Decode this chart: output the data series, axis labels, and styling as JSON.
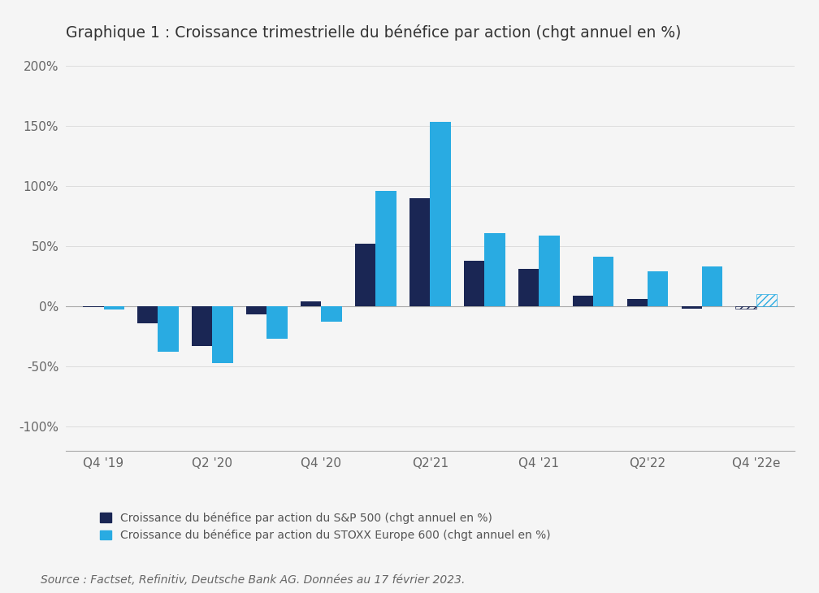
{
  "title": "Graphique 1 : Croissance trimestrielle du bénéfice par action (chgt annuel en %)",
  "sp500": [
    -1,
    -14,
    -33,
    -7,
    4,
    52,
    90,
    38,
    31,
    9,
    6,
    -2,
    -2
  ],
  "stoxx": [
    -3,
    -38,
    -47,
    -27,
    -13,
    96,
    153,
    61,
    59,
    41,
    29,
    33,
    10
  ],
  "sp500_estimated": [
    false,
    false,
    false,
    false,
    false,
    false,
    false,
    false,
    false,
    false,
    false,
    false,
    true
  ],
  "stoxx_estimated": [
    false,
    false,
    false,
    false,
    false,
    false,
    false,
    false,
    false,
    false,
    false,
    false,
    true
  ],
  "color_sp500": "#1a2654",
  "color_stoxx": "#29abe2",
  "xtick_positions": [
    0,
    2,
    4,
    6,
    8,
    10,
    12
  ],
  "xtick_labels": [
    "Q4 '19",
    "Q2 '20",
    "Q4 '20",
    "Q2'21",
    "Q4 '21",
    "Q2'22",
    "Q4 '22e"
  ],
  "ylim": [
    -120,
    210
  ],
  "yticks": [
    -100,
    -50,
    0,
    50,
    100,
    150,
    200
  ],
  "ytick_labels": [
    "-100%",
    "-50%",
    "0%",
    "50%",
    "100%",
    "150%",
    "200%"
  ],
  "legend_sp500": "Croissance du bénéfice par action du S&P 500 (chgt annuel en %)",
  "legend_stoxx": "Croissance du bénéfice par action du STOXX Europe 600 (chgt annuel en %)",
  "source": "Source : Factset, Refinitiv, Deutsche Bank AG. Données au 17 février 2023.",
  "background_color": "#f5f5f5",
  "bar_width": 0.38,
  "title_fontsize": 13.5,
  "tick_fontsize": 11,
  "legend_fontsize": 10,
  "source_fontsize": 10
}
